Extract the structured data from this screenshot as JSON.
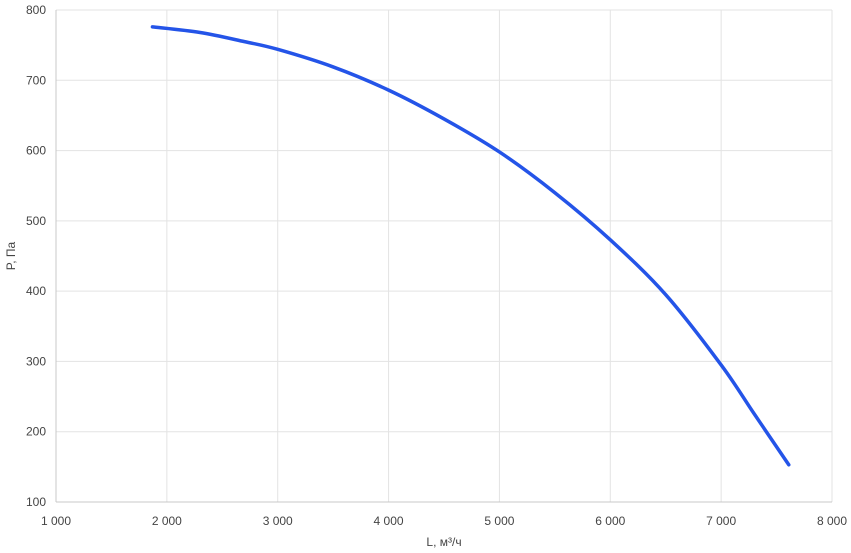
{
  "chart_data": {
    "type": "line",
    "title": "",
    "xlabel": "L, м³/ч",
    "ylabel": "P, Па",
    "xlim": [
      1000,
      8000
    ],
    "ylim": [
      100,
      800
    ],
    "x_ticks": [
      1000,
      2000,
      3000,
      4000,
      5000,
      6000,
      7000,
      8000
    ],
    "x_tick_labels": [
      "1 000",
      "2 000",
      "3 000",
      "4 000",
      "5 000",
      "6 000",
      "7 000",
      "8 000"
    ],
    "y_ticks": [
      100,
      200,
      300,
      400,
      500,
      600,
      700,
      800
    ],
    "y_tick_labels": [
      "100",
      "200",
      "300",
      "400",
      "500",
      "600",
      "700",
      "800"
    ],
    "grid": true,
    "legend": "none",
    "series": [
      {
        "color": "#2454e8",
        "x": [
          1870,
          2300,
          2700,
          3000,
          3500,
          4000,
          4500,
          5000,
          5500,
          6000,
          6500,
          7000,
          7300,
          7610
        ],
        "y": [
          776,
          768,
          755,
          744,
          719,
          686,
          645,
          598,
          540,
          473,
          395,
          295,
          225,
          153
        ]
      }
    ]
  }
}
